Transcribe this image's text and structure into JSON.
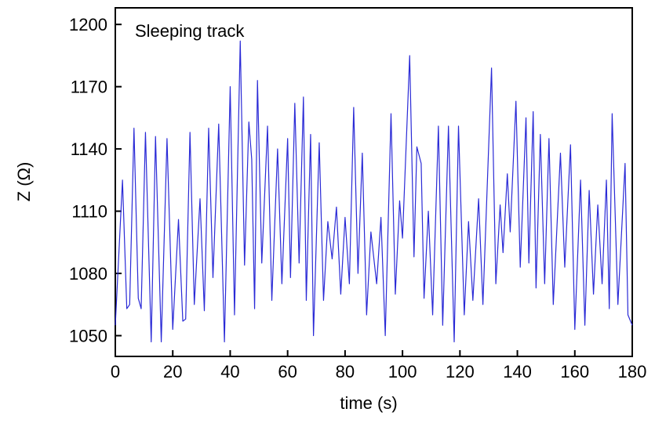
{
  "chart_data": {
    "type": "line",
    "annotation": "Sleeping track",
    "xlabel": "time (s)",
    "ylabel": "Z (Ω)",
    "xlim": [
      0,
      180
    ],
    "xticks": [
      0,
      20,
      40,
      60,
      80,
      100,
      120,
      140,
      160,
      180
    ],
    "ylim": [
      1040,
      1208
    ],
    "yticks": [
      1050,
      1080,
      1110,
      1140,
      1170,
      1200
    ],
    "x": [
      0,
      2.5,
      4,
      5,
      6.5,
      8,
      9,
      10.5,
      12.5,
      14,
      16,
      18,
      20,
      22,
      23.5,
      24.5,
      26,
      27.5,
      29.5,
      31,
      32.5,
      34,
      36,
      38,
      40,
      41.5,
      43.5,
      45,
      46.5,
      47.5,
      48.5,
      49.5,
      51,
      53,
      54.5,
      56.5,
      58,
      60,
      61,
      62.5,
      64,
      65.5,
      66.5,
      68,
      69,
      71,
      72.5,
      74,
      75.5,
      77,
      78.5,
      80,
      81.5,
      83,
      84.5,
      86,
      87.5,
      89,
      91,
      92.5,
      94,
      96,
      97.5,
      99,
      100,
      102.5,
      104,
      105,
      106.5,
      107.5,
      109,
      110.5,
      112.5,
      114,
      116,
      118,
      119.5,
      121.5,
      123,
      124.5,
      126.5,
      128,
      131,
      132.5,
      134,
      135,
      136.5,
      137.5,
      139.5,
      141,
      143,
      144,
      145.5,
      146.5,
      148,
      149.5,
      151,
      152.5,
      155,
      156.5,
      158.5,
      160,
      162,
      163.5,
      165,
      166.5,
      168,
      169.5,
      171,
      172,
      173,
      175,
      177.5,
      178.5,
      180
    ],
    "series": [
      {
        "color": "#2a2ad6",
        "values": [
          1055,
          1125,
          1063,
          1065,
          1150,
          1068,
          1063,
          1148,
          1047,
          1146,
          1047,
          1145,
          1053,
          1106,
          1057,
          1058,
          1148,
          1065,
          1116,
          1062,
          1150,
          1078,
          1152,
          1047,
          1170,
          1060,
          1192,
          1084,
          1153,
          1135,
          1063,
          1173,
          1085,
          1151,
          1067,
          1140,
          1075,
          1145,
          1078,
          1162,
          1085,
          1165,
          1067,
          1147,
          1050,
          1143,
          1067,
          1105,
          1087,
          1112,
          1070,
          1107,
          1075,
          1160,
          1080,
          1138,
          1060,
          1100,
          1075,
          1107,
          1050,
          1157,
          1070,
          1115,
          1097,
          1185,
          1088,
          1141,
          1133,
          1068,
          1110,
          1060,
          1151,
          1055,
          1151,
          1047,
          1151,
          1060,
          1105,
          1067,
          1116,
          1065,
          1179,
          1075,
          1113,
          1090,
          1128,
          1100,
          1163,
          1083,
          1155,
          1085,
          1158,
          1073,
          1147,
          1075,
          1145,
          1065,
          1138,
          1083,
          1142,
          1053,
          1125,
          1055,
          1120,
          1070,
          1113,
          1075,
          1125,
          1063,
          1157,
          1065,
          1133,
          1060,
          1055
        ]
      }
    ]
  }
}
